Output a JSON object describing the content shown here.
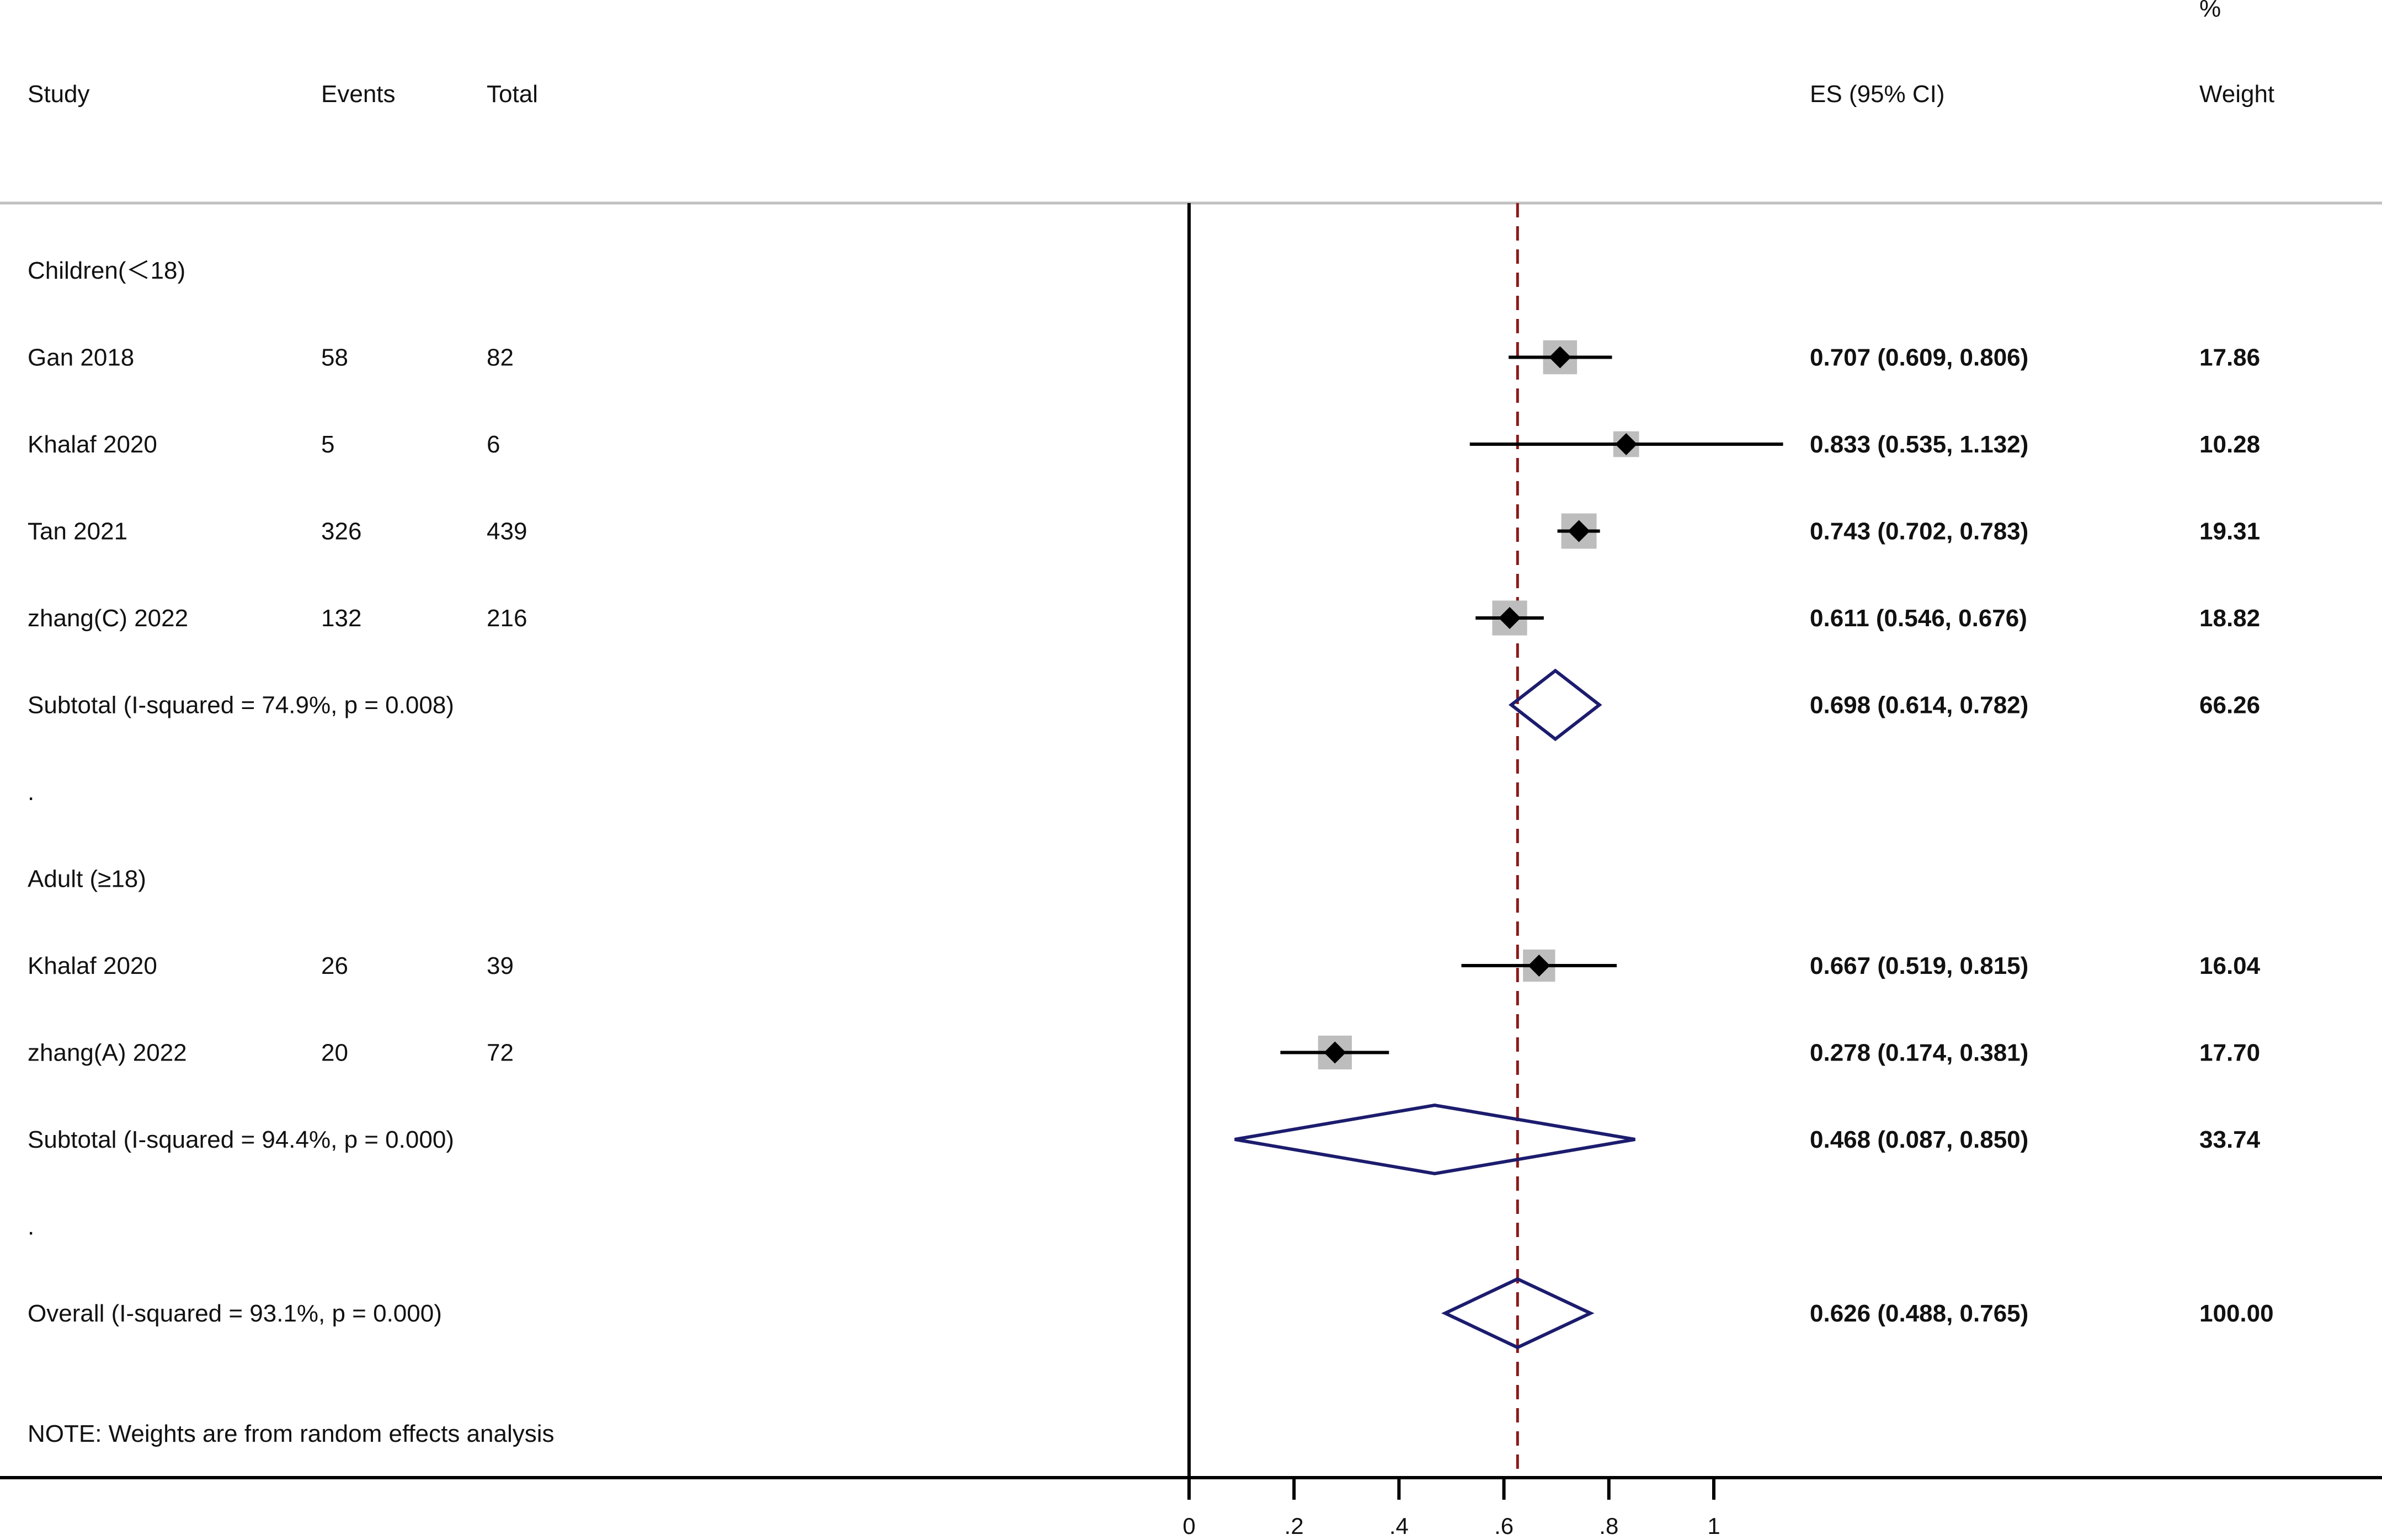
{
  "chart_data": {
    "type": "forest",
    "headers": {
      "study": "Study",
      "events": "Events",
      "total": "Total",
      "es": "ES (95% CI)",
      "weight_pct": "%",
      "weight": "Weight"
    },
    "x_axis": {
      "ticks": [
        0,
        0.2,
        0.4,
        0.6,
        0.8,
        1
      ],
      "tick_labels": [
        "0",
        ".2",
        ".4",
        ".6",
        ".8",
        "1"
      ],
      "range": [
        0,
        1.132
      ]
    },
    "null_line": 0,
    "overall_line": 0.626,
    "rows": [
      {
        "kind": "group",
        "label": "Children(＜18)"
      },
      {
        "kind": "study",
        "label": "Gan 2018",
        "events": "58",
        "total": "82",
        "es": 0.707,
        "lo": 0.609,
        "hi": 0.806,
        "es_text": "0.707 (0.609, 0.806)",
        "weight": 17.86,
        "weight_text": "17.86"
      },
      {
        "kind": "study",
        "label": "Khalaf 2020",
        "events": "5",
        "total": "6",
        "es": 0.833,
        "lo": 0.535,
        "hi": 1.132,
        "es_text": "0.833 (0.535, 1.132)",
        "weight": 10.28,
        "weight_text": "10.28"
      },
      {
        "kind": "study",
        "label": "Tan 2021",
        "events": "326",
        "total": "439",
        "es": 0.743,
        "lo": 0.702,
        "hi": 0.783,
        "es_text": "0.743 (0.702, 0.783)",
        "weight": 19.31,
        "weight_text": "19.31"
      },
      {
        "kind": "study",
        "label": "zhang(C) 2022",
        "events": "132",
        "total": "216",
        "es": 0.611,
        "lo": 0.546,
        "hi": 0.676,
        "es_text": "0.611 (0.546, 0.676)",
        "weight": 18.82,
        "weight_text": "18.82"
      },
      {
        "kind": "subtotal",
        "label": "Subtotal  (I-squared = 74.9%, p = 0.008)",
        "es": 0.698,
        "lo": 0.614,
        "hi": 0.782,
        "es_text": "0.698 (0.614, 0.782)",
        "weight": 66.26,
        "weight_text": "66.26"
      },
      {
        "kind": "spacer",
        "label": "."
      },
      {
        "kind": "group",
        "label": "Adult (≥18)"
      },
      {
        "kind": "study",
        "label": "Khalaf 2020",
        "events": "26",
        "total": "39",
        "es": 0.667,
        "lo": 0.519,
        "hi": 0.815,
        "es_text": "0.667 (0.519, 0.815)",
        "weight": 16.04,
        "weight_text": "16.04"
      },
      {
        "kind": "study",
        "label": "zhang(A) 2022",
        "events": "20",
        "total": "72",
        "es": 0.278,
        "lo": 0.174,
        "hi": 0.381,
        "es_text": "0.278 (0.174, 0.381)",
        "weight": 17.7,
        "weight_text": "17.70"
      },
      {
        "kind": "subtotal",
        "label": "Subtotal  (I-squared = 94.4%, p = 0.000)",
        "es": 0.468,
        "lo": 0.087,
        "hi": 0.85,
        "es_text": "0.468 (0.087, 0.850)",
        "weight": 33.74,
        "weight_text": "33.74"
      },
      {
        "kind": "spacer",
        "label": "."
      },
      {
        "kind": "overall",
        "label": "Overall  (I-squared = 93.1%, p = 0.000)",
        "es": 0.626,
        "lo": 0.488,
        "hi": 0.765,
        "es_text": "0.626 (0.488, 0.765)",
        "weight": 100.0,
        "weight_text": "100.00"
      }
    ],
    "note": "NOTE: Weights are from random effects analysis",
    "colors": {
      "text": "#111111",
      "diamond": "#1c1c6e",
      "overall_line": "#8b1a1a",
      "weight_box": "#bdbdbd",
      "point": "#000000",
      "axis": "#000000",
      "header_rule": "#c0c0c0"
    }
  }
}
